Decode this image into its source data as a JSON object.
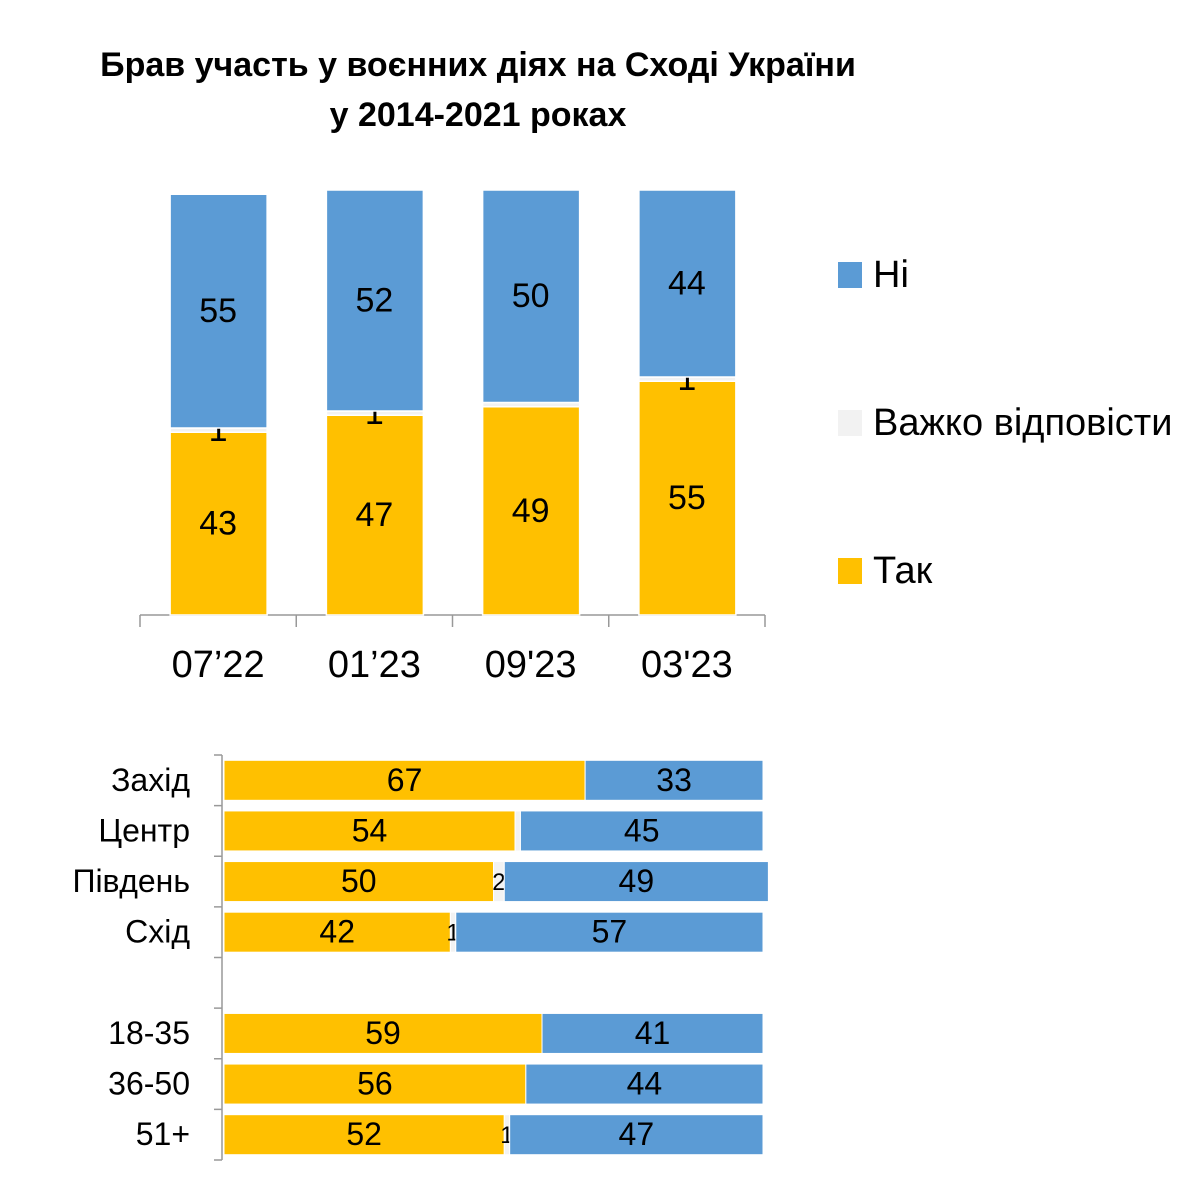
{
  "chart_data": [
    {
      "type": "stacked-bar",
      "title": [
        "Брав участь у воєнних діях на Сході України",
        "у 2014-2021 роках"
      ],
      "categories": [
        "07’22",
        "01’23",
        "09'23",
        "03'23"
      ],
      "ylim": [
        0,
        100
      ],
      "legend": "right",
      "series": [
        {
          "name": "Так",
          "color": "#FFC000",
          "values": [
            43,
            47,
            49,
            55
          ]
        },
        {
          "name": "Важко відповісти",
          "color": "#F2F2F2",
          "values": [
            1,
            1,
            1,
            1
          ],
          "value_labels": [
            "1",
            "1",
            null,
            "1"
          ]
        },
        {
          "name": "Ні",
          "color": "#5B9BD5",
          "values": [
            55,
            52,
            50,
            44
          ]
        }
      ]
    },
    {
      "type": "stacked-barh",
      "categories": [
        "Захід",
        "Центр",
        "Південь",
        "Схід",
        null,
        "18-35",
        "36-50",
        "51+"
      ],
      "xlim": [
        0,
        100
      ],
      "series": [
        {
          "name": "Так",
          "color": "#FFC000",
          "values": [
            67,
            54,
            50,
            42,
            null,
            59,
            56,
            52
          ]
        },
        {
          "name": "Важко відповісти",
          "color": "#F2F2F2",
          "values": [
            0,
            1,
            2,
            1,
            null,
            0,
            0,
            1
          ],
          "value_labels": [
            null,
            null,
            "2",
            "1",
            null,
            null,
            null,
            "1"
          ]
        },
        {
          "name": "Ні",
          "color": "#5B9BD5",
          "values": [
            33,
            45,
            49,
            57,
            null,
            41,
            44,
            47
          ]
        }
      ]
    }
  ]
}
